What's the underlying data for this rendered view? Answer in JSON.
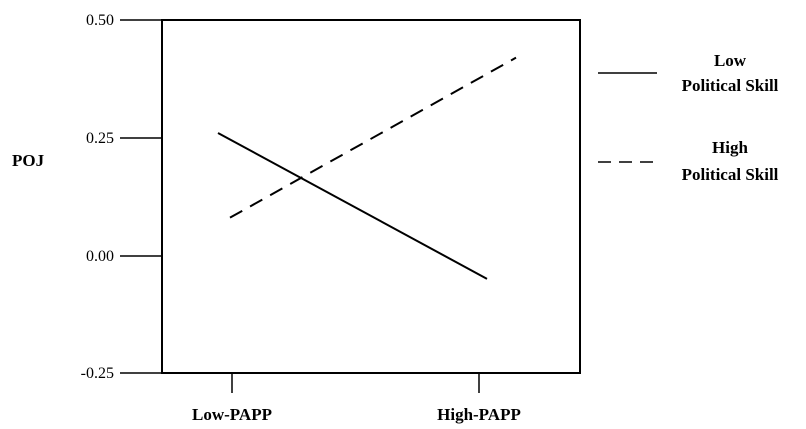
{
  "chart_data": {
    "type": "line",
    "title": "",
    "xlabel": "",
    "ylabel": "POJ",
    "categories": [
      "Low-PAPP",
      "High-PAPP"
    ],
    "ylim": [
      -0.25,
      0.5
    ],
    "yticks": [
      "0.50",
      "0.25",
      "0.00",
      "-0.25"
    ],
    "grid": false,
    "legend_position": "right",
    "series": [
      {
        "name_lines": [
          "Low",
          "Political Skill"
        ],
        "style": "solid",
        "values": [
          0.26,
          -0.05
        ]
      },
      {
        "name_lines": [
          "High",
          "Political Skill"
        ],
        "style": "dashed",
        "values": [
          0.08,
          0.42
        ]
      }
    ],
    "colors": {
      "line": "#000000",
      "frame": "#000000"
    }
  }
}
